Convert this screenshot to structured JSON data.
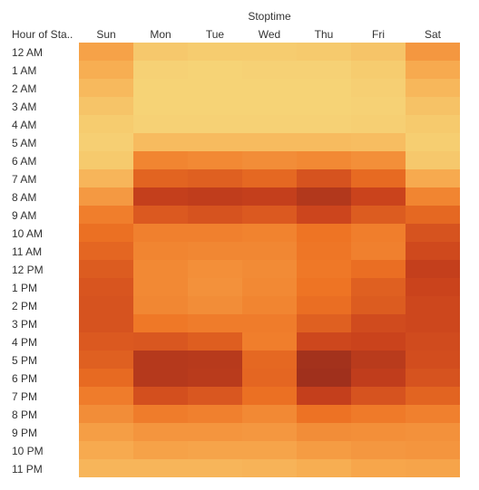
{
  "chart_data": {
    "type": "heatmap",
    "title": "",
    "column_title": "Stoptime",
    "row_header": "Hour of Sta..",
    "days": [
      "Sun",
      "Mon",
      "Tue",
      "Wed",
      "Thu",
      "Fri",
      "Sat"
    ],
    "hours": [
      "12 AM",
      "1 AM",
      "2 AM",
      "3 AM",
      "4 AM",
      "5 AM",
      "6 AM",
      "7 AM",
      "8 AM",
      "9 AM",
      "10 AM",
      "11 AM",
      "12 PM",
      "1 PM",
      "2 PM",
      "3 PM",
      "4 PM",
      "5 PM",
      "6 PM",
      "7 PM",
      "8 PM",
      "9 PM",
      "10 PM",
      "11 PM"
    ],
    "values": [
      [
        0.28,
        0.08,
        0.06,
        0.06,
        0.07,
        0.1,
        0.33
      ],
      [
        0.22,
        0.03,
        0.02,
        0.03,
        0.03,
        0.06,
        0.24
      ],
      [
        0.16,
        0.02,
        0.02,
        0.02,
        0.02,
        0.04,
        0.17
      ],
      [
        0.1,
        0.02,
        0.02,
        0.02,
        0.02,
        0.03,
        0.11
      ],
      [
        0.06,
        0.03,
        0.03,
        0.03,
        0.03,
        0.04,
        0.07
      ],
      [
        0.04,
        0.15,
        0.15,
        0.15,
        0.15,
        0.14,
        0.05
      ],
      [
        0.07,
        0.42,
        0.4,
        0.38,
        0.4,
        0.37,
        0.08
      ],
      [
        0.18,
        0.58,
        0.6,
        0.56,
        0.66,
        0.55,
        0.24
      ],
      [
        0.32,
        0.78,
        0.8,
        0.78,
        0.88,
        0.74,
        0.42
      ],
      [
        0.45,
        0.63,
        0.66,
        0.63,
        0.73,
        0.62,
        0.56
      ],
      [
        0.52,
        0.44,
        0.44,
        0.43,
        0.5,
        0.45,
        0.66
      ],
      [
        0.57,
        0.42,
        0.41,
        0.41,
        0.49,
        0.44,
        0.71
      ],
      [
        0.62,
        0.4,
        0.37,
        0.39,
        0.48,
        0.53,
        0.78
      ],
      [
        0.65,
        0.4,
        0.36,
        0.4,
        0.5,
        0.6,
        0.74
      ],
      [
        0.66,
        0.41,
        0.38,
        0.42,
        0.53,
        0.62,
        0.72
      ],
      [
        0.66,
        0.48,
        0.46,
        0.46,
        0.6,
        0.7,
        0.72
      ],
      [
        0.63,
        0.64,
        0.61,
        0.45,
        0.72,
        0.74,
        0.7
      ],
      [
        0.6,
        0.86,
        0.85,
        0.56,
        0.96,
        0.84,
        0.69
      ],
      [
        0.55,
        0.86,
        0.84,
        0.57,
        0.98,
        0.8,
        0.66
      ],
      [
        0.46,
        0.68,
        0.64,
        0.52,
        0.78,
        0.66,
        0.58
      ],
      [
        0.38,
        0.46,
        0.44,
        0.4,
        0.51,
        0.47,
        0.44
      ],
      [
        0.3,
        0.34,
        0.34,
        0.33,
        0.38,
        0.37,
        0.36
      ],
      [
        0.24,
        0.28,
        0.27,
        0.27,
        0.31,
        0.33,
        0.34
      ],
      [
        0.18,
        0.18,
        0.18,
        0.19,
        0.22,
        0.26,
        0.27
      ]
    ],
    "color_scale": [
      "#f6d77a",
      "#f7a84d",
      "#ee7424",
      "#c9411c",
      "#9c2f1c"
    ],
    "legend": "none",
    "grid": false
  }
}
